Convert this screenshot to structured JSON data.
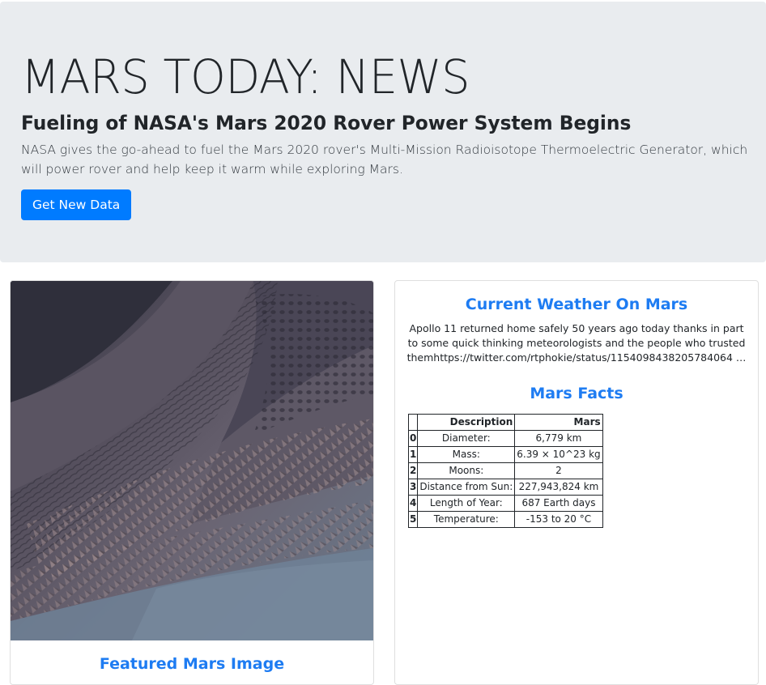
{
  "jumbotron": {
    "title": "MARS TODAY: NEWS",
    "news_title": "Fueling of NASA's Mars 2020 Rover Power System Begins",
    "news_paragraph": "NASA gives the go-ahead to fuel the Mars 2020 rover's Multi-Mission Radioisotope Thermoelectric Generator, which will power rover and help keep it warm while exploring Mars.",
    "button_label": "Get New Data",
    "accent_color": "#007bff",
    "background_color": "#e9ecef"
  },
  "featured_image": {
    "title": "Featured Mars Image",
    "image_semantic": "mars-sand-dunes-photo"
  },
  "weather": {
    "title": "Current Weather On Mars",
    "text": "Apollo 11 returned home safely 50 years ago today thanks in part to some quick thinking meteorologists and the people who trusted themhttps://twitter.com/rtphokie/status/1154098438205784064 …"
  },
  "facts": {
    "title": "Mars Facts",
    "columns": [
      "",
      "Description",
      "Mars"
    ],
    "rows": [
      {
        "index": "0",
        "description": "Diameter:",
        "value": "6,779 km"
      },
      {
        "index": "1",
        "description": "Mass:",
        "value": "6.39 × 10^23 kg"
      },
      {
        "index": "2",
        "description": "Moons:",
        "value": "2"
      },
      {
        "index": "3",
        "description": "Distance from Sun:",
        "value": "227,943,824 km"
      },
      {
        "index": "4",
        "description": "Length of Year:",
        "value": "687 Earth days"
      },
      {
        "index": "5",
        "description": "Temperature:",
        "value": "-153 to 20 °C"
      }
    ]
  },
  "colors": {
    "section_title": "#1e7cf2"
  }
}
